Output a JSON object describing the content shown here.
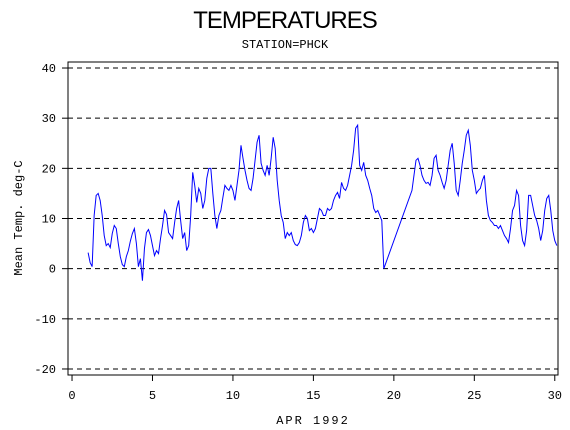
{
  "chart_data": {
    "type": "line",
    "title": "TEMPERATURES",
    "subtitle": "STATION=PHCK",
    "x_label": "APR 1992",
    "y_label": "Mean Temp. deg-C",
    "xlim": [
      -0.25,
      30.2
    ],
    "ylim": [
      -21.2,
      41.2
    ],
    "xticks": [
      0,
      5,
      10,
      15,
      20,
      25,
      30
    ],
    "yticks": [
      -20,
      -10,
      0,
      10,
      20,
      30,
      40
    ],
    "grid": true,
    "color": "#0000ff",
    "x": [
      1,
      1.125,
      1.25,
      1.375,
      1.5,
      1.625,
      1.75,
      1.875,
      2,
      2.125,
      2.25,
      2.375,
      2.5,
      2.625,
      2.75,
      2.875,
      3,
      3.125,
      3.25,
      3.375,
      3.5,
      3.625,
      3.75,
      3.875,
      4,
      4.125,
      4.25,
      4.375,
      4.5,
      4.625,
      4.75,
      4.875,
      5,
      5.125,
      5.25,
      5.375,
      5.5,
      5.625,
      5.75,
      5.875,
      6,
      6.125,
      6.25,
      6.375,
      6.5,
      6.625,
      6.75,
      6.875,
      7,
      7.125,
      7.25,
      7.375,
      7.5,
      7.625,
      7.75,
      7.875,
      8,
      8.125,
      8.25,
      8.375,
      8.5,
      8.625,
      8.75,
      8.875,
      9,
      9.125,
      9.25,
      9.375,
      9.5,
      9.625,
      9.75,
      9.875,
      10,
      10.125,
      10.25,
      10.375,
      10.5,
      10.625,
      10.75,
      10.875,
      11,
      11.125,
      11.25,
      11.375,
      11.5,
      11.625,
      11.75,
      11.875,
      12,
      12.125,
      12.25,
      12.375,
      12.5,
      12.625,
      12.75,
      12.875,
      13,
      13.125,
      13.25,
      13.375,
      13.5,
      13.625,
      13.75,
      13.875,
      14,
      14.125,
      14.25,
      14.375,
      14.5,
      14.625,
      14.75,
      14.875,
      15,
      15.125,
      15.25,
      15.375,
      15.5,
      15.625,
      15.75,
      15.875,
      16,
      16.125,
      16.25,
      16.375,
      16.5,
      16.625,
      16.75,
      16.875,
      17,
      17.125,
      17.25,
      17.375,
      17.5,
      17.625,
      17.75,
      17.875,
      18,
      18.125,
      18.25,
      18.375,
      18.5,
      18.625,
      18.75,
      18.875,
      19,
      19.125,
      19.25,
      19.375,
      21.125,
      21.25,
      21.375,
      21.5,
      21.625,
      21.75,
      21.875,
      22,
      22.125,
      22.25,
      22.375,
      22.5,
      22.625,
      22.75,
      22.875,
      23,
      23.125,
      23.25,
      23.375,
      23.5,
      23.625,
      23.75,
      23.875,
      24,
      24.125,
      24.25,
      24.375,
      24.5,
      24.625,
      24.75,
      24.875,
      25,
      25.125,
      25.25,
      25.375,
      25.5,
      25.625,
      25.75,
      25.875,
      26,
      26.125,
      26.25,
      26.375,
      26.5,
      26.625,
      26.75,
      26.875,
      27,
      27.125,
      27.25,
      27.375,
      27.5,
      27.625,
      27.75,
      27.875,
      28,
      28.125,
      28.25,
      28.375,
      28.5,
      28.625,
      28.75,
      28.875,
      29,
      29.125,
      29.25,
      29.375,
      29.5,
      29.625,
      29.75,
      29.875,
      30,
      30.125
    ],
    "values": [
      3.2,
      1.2,
      0.4,
      10.6,
      14.6,
      15,
      13.6,
      10.6,
      6.6,
      4.6,
      5,
      4.2,
      7,
      8.6,
      8,
      5,
      2.4,
      0.8,
      0.4,
      2.4,
      3.6,
      5.5,
      7,
      8,
      5,
      0.4,
      2,
      -2.4,
      4,
      7.2,
      7.8,
      6.6,
      4.6,
      2.6,
      3.6,
      3,
      6,
      8.6,
      11.6,
      10.8,
      7.2,
      6.6,
      6,
      9.2,
      12,
      13.6,
      9.6,
      6,
      7.2,
      3.6,
      4.6,
      10.6,
      19.2,
      16.6,
      13.2,
      16,
      15,
      12,
      13.6,
      18,
      20,
      20,
      15,
      10.6,
      8,
      10.6,
      11.6,
      14.2,
      16.6,
      16,
      15.6,
      16.6,
      15.6,
      13.6,
      16.6,
      19.6,
      24.6,
      22,
      19.6,
      17.6,
      16,
      15.6,
      18,
      21.6,
      25.2,
      26.6,
      21,
      19.6,
      18.6,
      20.6,
      18.6,
      22,
      26.2,
      24,
      17.6,
      13.6,
      10.6,
      9.2,
      6,
      7.2,
      6.6,
      7.2,
      5.6,
      4.8,
      4.6,
      5.2,
      6.6,
      9.2,
      10.6,
      10,
      7.6,
      8,
      7.2,
      8,
      10,
      12,
      11.6,
      10.6,
      10.6,
      12,
      11.6,
      12,
      13.6,
      14.6,
      15.2,
      14,
      17.2,
      16,
      15.6,
      16.6,
      18.6,
      20.6,
      23.6,
      28,
      28.6,
      20.6,
      19.6,
      21.2,
      18.6,
      17.6,
      16,
      14.6,
      12,
      11.2,
      11.6,
      10.6,
      9.6,
      0,
      15.6,
      18.6,
      21.6,
      22,
      20.6,
      18.6,
      17.6,
      17,
      17.2,
      16.6,
      18.6,
      22,
      22.6,
      19.6,
      18.6,
      17.2,
      16,
      17.6,
      20.6,
      23.6,
      25,
      21,
      15.6,
      14.6,
      17.6,
      21,
      23.6,
      26.6,
      27.6,
      24.6,
      19.6,
      17.6,
      15,
      15.6,
      16,
      17.6,
      18.6,
      13.6,
      10.6,
      9.6,
      9.2,
      8.6,
      8.6,
      8,
      8.6,
      7.6,
      6.6,
      6,
      5.2,
      8,
      11.6,
      12.6,
      15.6,
      14.6,
      8.6,
      5.6,
      4.6,
      7.6,
      14.6,
      14.6,
      12.6,
      10.6,
      9.6,
      8,
      5.6,
      7.6,
      11.6,
      14,
      14.6,
      11.6,
      7.6,
      5.6,
      4.6
    ]
  }
}
